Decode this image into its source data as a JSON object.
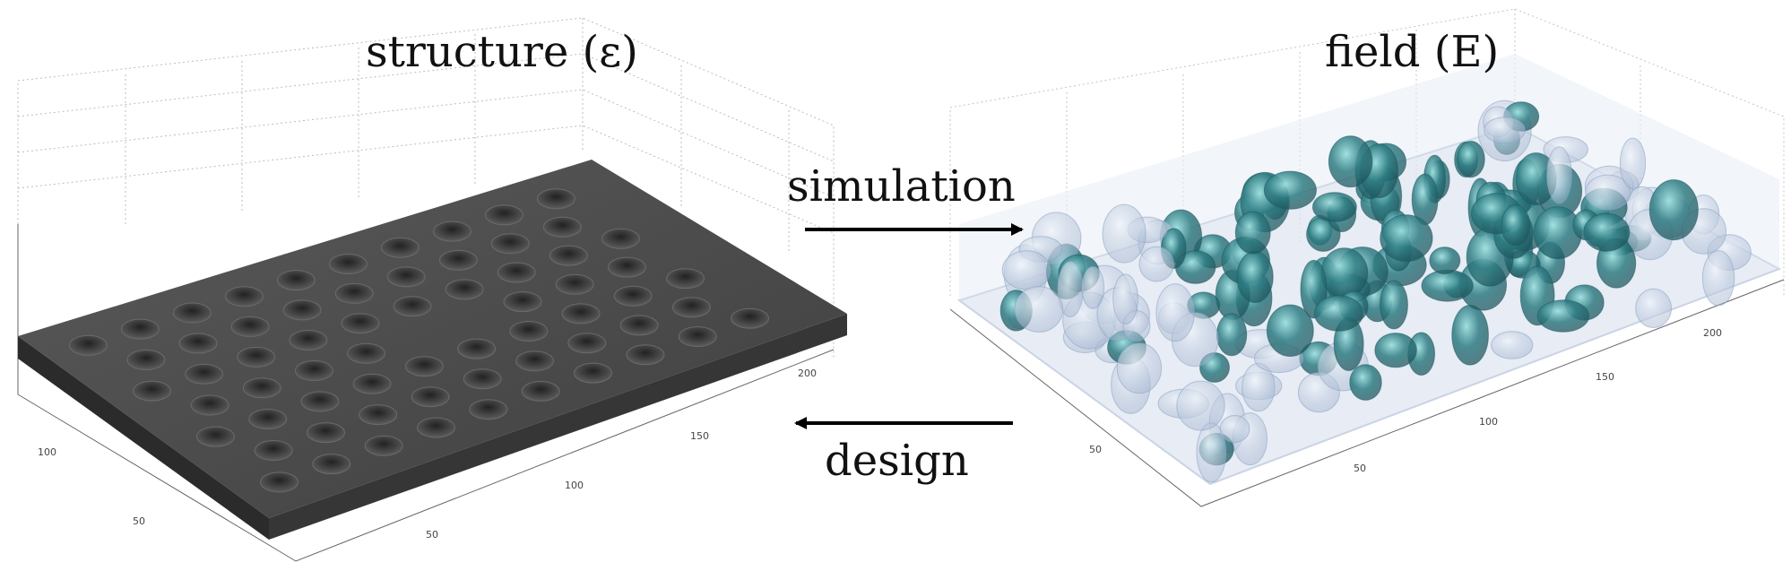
{
  "titles": {
    "structure": "structure (ε)",
    "field": "field (E)"
  },
  "arrows": {
    "simulation": "simulation",
    "design": "design"
  },
  "left_plot": {
    "axis_ticks_front": [
      "50",
      "100",
      "150",
      "200"
    ],
    "axis_ticks_side": [
      "50",
      "100"
    ],
    "slab_color": "#4a4a4a",
    "hole_rows": [
      10,
      9,
      10,
      9,
      10,
      9,
      10
    ]
  },
  "right_plot": {
    "axis_ticks_front": [
      "50",
      "100",
      "150",
      "200"
    ],
    "axis_ticks_side": [
      "50"
    ],
    "field_colors": [
      "#c9d3e4",
      "#8fa7c6",
      "#3f7f86",
      "#1f5f66"
    ]
  }
}
